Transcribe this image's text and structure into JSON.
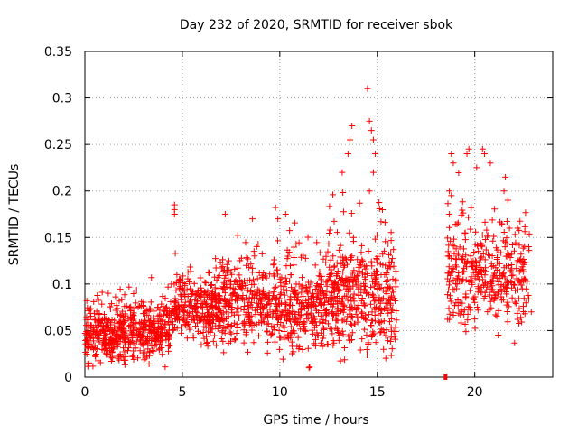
{
  "chart_data": {
    "type": "scatter",
    "title": "Day 232 of 2020, SRMTID for receiver sbok",
    "xlabel": "GPS time / hours",
    "ylabel": "SRMTID / TECUs",
    "xlim": [
      0,
      24
    ],
    "ylim": [
      0,
      0.35
    ],
    "x_ticks": [
      0,
      5,
      10,
      15,
      20
    ],
    "y_ticks": [
      0,
      0.05,
      0.1,
      0.15,
      0.2,
      0.25,
      0.3,
      0.35
    ],
    "x_tick_labels": [
      "0",
      "5",
      "10",
      "15",
      "20"
    ],
    "y_tick_labels": [
      "0",
      "0.05",
      "0.1",
      "0.15",
      "0.2",
      "0.25",
      "0.3",
      "0.35"
    ],
    "grid": true,
    "marker": "+",
    "color": "#ff0000",
    "series": [
      {
        "name": "SRMTID",
        "segments": [
          {
            "x_range": [
              0.0,
              2.0
            ],
            "y_center": 0.045,
            "y_spread": 0.018,
            "count": 260
          },
          {
            "x_range": [
              2.0,
              4.4
            ],
            "y_center": 0.05,
            "y_spread": 0.02,
            "count": 280
          },
          {
            "x_range": [
              4.4,
              7.0
            ],
            "y_center": 0.072,
            "y_spread": 0.022,
            "count": 300
          },
          {
            "x_range": [
              7.0,
              10.0
            ],
            "y_center": 0.08,
            "y_spread": 0.028,
            "count": 320
          },
          {
            "x_range": [
              10.0,
              12.5
            ],
            "y_center": 0.075,
            "y_spread": 0.03,
            "count": 280
          },
          {
            "x_range": [
              12.5,
              14.0
            ],
            "y_center": 0.085,
            "y_spread": 0.035,
            "count": 200
          },
          {
            "x_range": [
              14.0,
              16.0
            ],
            "y_center": 0.085,
            "y_spread": 0.04,
            "count": 220
          },
          {
            "x_range": [
              18.6,
              20.5
            ],
            "y_center": 0.11,
            "y_spread": 0.035,
            "count": 180
          },
          {
            "x_range": [
              20.5,
              22.8
            ],
            "y_center": 0.11,
            "y_spread": 0.035,
            "count": 200
          }
        ],
        "highlights": [
          {
            "x": 4.6,
            "y": 0.185
          },
          {
            "x": 4.6,
            "y": 0.18
          },
          {
            "x": 4.6,
            "y": 0.175
          },
          {
            "x": 14.5,
            "y": 0.31
          },
          {
            "x": 14.6,
            "y": 0.275
          },
          {
            "x": 14.7,
            "y": 0.265
          },
          {
            "x": 14.8,
            "y": 0.255
          },
          {
            "x": 14.9,
            "y": 0.24
          },
          {
            "x": 14.8,
            "y": 0.22
          },
          {
            "x": 14.6,
            "y": 0.2
          },
          {
            "x": 13.7,
            "y": 0.27
          },
          {
            "x": 13.5,
            "y": 0.24
          },
          {
            "x": 13.6,
            "y": 0.255
          },
          {
            "x": 13.2,
            "y": 0.22
          },
          {
            "x": 19.7,
            "y": 0.245
          },
          {
            "x": 19.6,
            "y": 0.24
          },
          {
            "x": 18.8,
            "y": 0.24
          },
          {
            "x": 18.9,
            "y": 0.23
          },
          {
            "x": 20.4,
            "y": 0.245
          },
          {
            "x": 20.5,
            "y": 0.24
          },
          {
            "x": 20.8,
            "y": 0.23
          },
          {
            "x": 20.1,
            "y": 0.225
          },
          {
            "x": 18.7,
            "y": 0.2
          },
          {
            "x": 18.8,
            "y": 0.195
          },
          {
            "x": 18.7,
            "y": 0.175
          },
          {
            "x": 10.3,
            "y": 0.175
          },
          {
            "x": 9.9,
            "y": 0.17
          },
          {
            "x": 8.6,
            "y": 0.17
          },
          {
            "x": 7.2,
            "y": 0.175
          },
          {
            "x": 21.5,
            "y": 0.2
          },
          {
            "x": 21.7,
            "y": 0.19
          },
          {
            "x": 22.2,
            "y": 0.16
          },
          {
            "x": 22.9,
            "y": 0.07
          },
          {
            "x": 0.1,
            "y": 0.082
          },
          {
            "x": 1.2,
            "y": 0.09
          },
          {
            "x": 11.5,
            "y": 0.01
          }
        ],
        "outliers": [
          {
            "x": 18.5,
            "y": 0.0
          }
        ]
      }
    ]
  }
}
